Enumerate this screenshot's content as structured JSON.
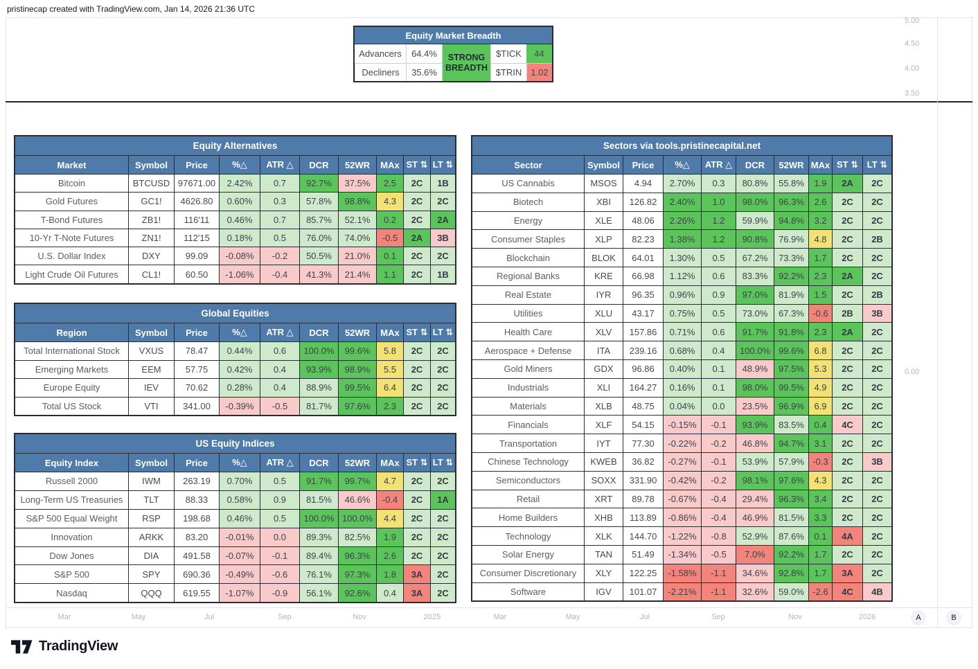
{
  "attribution": "pristinecap created with TradingView.com, Jan 14, 2026 21:36 UTC",
  "breadth": {
    "title": "Equity Market Breadth",
    "advancers_label": "Advancers",
    "advancers_value": "64.4%",
    "decliners_label": "Decliners",
    "decliners_value": "35.6%",
    "status": "STRONG\nBREADTH",
    "tick_label": "$TICK",
    "tick_value": "44",
    "trin_label": "$TRIN",
    "trin_value": "1.02"
  },
  "tables": [
    {
      "title": "Equity Alternatives",
      "columns": [
        "Market",
        "Symbol",
        "Price",
        "%△",
        "ATR △",
        "DCR",
        "52WR",
        "MAx",
        "ST ⇅",
        "LT ⇅"
      ],
      "rows": [
        {
          "name": "Bitcoin",
          "symbol": "BTCUSD",
          "price": "97671.00",
          "values": [
            "2.42%",
            "0.7",
            "92.7%",
            "37.5%",
            "2.5",
            "2C",
            "1B"
          ],
          "colors": [
            "l",
            "l",
            "g",
            "p",
            "g",
            "l",
            "l"
          ]
        },
        {
          "name": "Gold Futures",
          "symbol": "GC1!",
          "price": "4626.80",
          "values": [
            "0.60%",
            "0.3",
            "57.8%",
            "98.8%",
            "4.3",
            "2C",
            "2C"
          ],
          "colors": [
            "l",
            "l",
            "l",
            "g",
            "y",
            "l",
            "l"
          ]
        },
        {
          "name": "T-Bond Futures",
          "symbol": "ZB1!",
          "price": "116'11",
          "values": [
            "0.46%",
            "0.7",
            "85.7%",
            "52.1%",
            "0.2",
            "2C",
            "2A"
          ],
          "colors": [
            "l",
            "l",
            "l",
            "l",
            "g",
            "l",
            "g"
          ]
        },
        {
          "name": "10-Yr T-Note Futures",
          "symbol": "ZN1!",
          "price": "112'15",
          "values": [
            "0.18%",
            "0.5",
            "76.0%",
            "74.0%",
            "-0.5",
            "2A",
            "3B"
          ],
          "colors": [
            "l",
            "l",
            "l",
            "l",
            "r",
            "g",
            "p"
          ]
        },
        {
          "name": "U.S. Dollar Index",
          "symbol": "DXY",
          "price": "99.09",
          "values": [
            "-0.08%",
            "-0.2",
            "50.5%",
            "21.0%",
            "0.1",
            "2C",
            "2C"
          ],
          "colors": [
            "p",
            "p",
            "l",
            "p",
            "g",
            "l",
            "l"
          ]
        },
        {
          "name": "Light Crude Oil Futures",
          "symbol": "CL1!",
          "price": "60.50",
          "values": [
            "-1.06%",
            "-0.4",
            "41.3%",
            "21.4%",
            "1.1",
            "2C",
            "1B"
          ],
          "colors": [
            "p",
            "p",
            "p",
            "p",
            "g",
            "l",
            "l"
          ]
        }
      ]
    },
    {
      "title": "Global Equities",
      "columns": [
        "Region",
        "Symbol",
        "Price",
        "%△",
        "ATR △",
        "DCR",
        "52WR",
        "MAx",
        "ST ⇅",
        "LT ⇅"
      ],
      "rows": [
        {
          "name": "Total International Stock",
          "symbol": "VXUS",
          "price": "78.47",
          "values": [
            "0.44%",
            "0.6",
            "100.0%",
            "99.6%",
            "5.8",
            "2C",
            "2C"
          ],
          "colors": [
            "l",
            "l",
            "g",
            "g",
            "y",
            "l",
            "l"
          ]
        },
        {
          "name": "Emerging Markets",
          "symbol": "EEM",
          "price": "57.75",
          "values": [
            "0.42%",
            "0.4",
            "93.9%",
            "98.9%",
            "5.5",
            "2C",
            "2C"
          ],
          "colors": [
            "l",
            "l",
            "g",
            "g",
            "y",
            "l",
            "l"
          ]
        },
        {
          "name": "Europe Equity",
          "symbol": "IEV",
          "price": "70.62",
          "values": [
            "0.28%",
            "0.4",
            "88.9%",
            "99.5%",
            "6.4",
            "2C",
            "2C"
          ],
          "colors": [
            "l",
            "l",
            "l",
            "g",
            "y",
            "l",
            "l"
          ]
        },
        {
          "name": "Total US Stock",
          "symbol": "VTI",
          "price": "341.00",
          "values": [
            "-0.39%",
            "-0.5",
            "81.7%",
            "97.6%",
            "2.3",
            "2C",
            "2C"
          ],
          "colors": [
            "p",
            "p",
            "l",
            "g",
            "g",
            "l",
            "l"
          ]
        }
      ]
    },
    {
      "title": "US Equity Indices",
      "columns": [
        "Equity Index",
        "Symbol",
        "Price",
        "%△",
        "ATR △",
        "DCR",
        "52WR",
        "MAx",
        "ST ⇅",
        "LT ⇅"
      ],
      "rows": [
        {
          "name": "Russell 2000",
          "symbol": "IWM",
          "price": "263.19",
          "values": [
            "0.70%",
            "0.5",
            "91.7%",
            "99.7%",
            "4.7",
            "2C",
            "2C"
          ],
          "colors": [
            "l",
            "l",
            "g",
            "g",
            "y",
            "l",
            "l"
          ]
        },
        {
          "name": "Long-Term US Treasuries",
          "symbol": "TLT",
          "price": "88.33",
          "values": [
            "0.58%",
            "0.9",
            "81.5%",
            "46.6%",
            "-0.4",
            "2C",
            "1A"
          ],
          "colors": [
            "l",
            "l",
            "l",
            "p",
            "r",
            "l",
            "g"
          ]
        },
        {
          "name": "S&P 500 Equal Weight",
          "symbol": "RSP",
          "price": "198.68",
          "values": [
            "0.46%",
            "0.5",
            "100.0%",
            "100.0%",
            "4.4",
            "2C",
            "2C"
          ],
          "colors": [
            "l",
            "l",
            "g",
            "g",
            "y",
            "l",
            "l"
          ]
        },
        {
          "name": "Innovation",
          "symbol": "ARKK",
          "price": "83.20",
          "values": [
            "-0.01%",
            "0.0",
            "89.3%",
            "82.5%",
            "1.9",
            "2C",
            "2C"
          ],
          "colors": [
            "p",
            "p",
            "l",
            "l",
            "g",
            "l",
            "l"
          ]
        },
        {
          "name": "Dow Jones",
          "symbol": "DIA",
          "price": "491.58",
          "values": [
            "-0.07%",
            "-0.1",
            "89.4%",
            "96.3%",
            "2.6",
            "2C",
            "2C"
          ],
          "colors": [
            "p",
            "p",
            "l",
            "g",
            "g",
            "l",
            "l"
          ]
        },
        {
          "name": "S&P 500",
          "symbol": "SPY",
          "price": "690.36",
          "values": [
            "-0.49%",
            "-0.6",
            "76.1%",
            "97.3%",
            "1.8",
            "3A",
            "2C"
          ],
          "colors": [
            "p",
            "p",
            "l",
            "g",
            "g",
            "r",
            "l"
          ]
        },
        {
          "name": "Nasdaq",
          "symbol": "QQQ",
          "price": "619.55",
          "values": [
            "-1.07%",
            "-0.9",
            "56.1%",
            "92.6%",
            "0.4",
            "3A",
            "2C"
          ],
          "colors": [
            "p",
            "p",
            "l",
            "g",
            "l",
            "r",
            "l"
          ]
        }
      ]
    },
    {
      "title": "Sectors via tools.pristinecapital.net",
      "columns": [
        "Sector",
        "Symbol",
        "Price",
        "%△",
        "ATR △",
        "DCR",
        "52WR",
        "MAx",
        "ST ⇅",
        "LT ⇅"
      ],
      "rows": [
        {
          "name": "US Cannabis",
          "symbol": "MSOS",
          "price": "4.94",
          "values": [
            "2.70%",
            "0.3",
            "80.8%",
            "55.8%",
            "1.9",
            "2A",
            "2C"
          ],
          "colors": [
            "l",
            "l",
            "l",
            "l",
            "g",
            "g",
            "l"
          ]
        },
        {
          "name": "Biotech",
          "symbol": "XBI",
          "price": "126.82",
          "values": [
            "2.40%",
            "1.0",
            "98.0%",
            "96.3%",
            "2.6",
            "2C",
            "2C"
          ],
          "colors": [
            "g",
            "g",
            "g",
            "g",
            "g",
            "l",
            "l"
          ]
        },
        {
          "name": "Energy",
          "symbol": "XLE",
          "price": "48.06",
          "values": [
            "2.26%",
            "1.2",
            "59.9%",
            "94.8%",
            "3.2",
            "2C",
            "2C"
          ],
          "colors": [
            "g",
            "g",
            "l",
            "g",
            "g",
            "l",
            "l"
          ]
        },
        {
          "name": "Consumer Staples",
          "symbol": "XLP",
          "price": "82.23",
          "values": [
            "1.38%",
            "1.2",
            "90.8%",
            "76.9%",
            "4.8",
            "2C",
            "2B"
          ],
          "colors": [
            "g",
            "g",
            "g",
            "l",
            "y",
            "l",
            "l"
          ]
        },
        {
          "name": "Blockchain",
          "symbol": "BLOK",
          "price": "64.01",
          "values": [
            "1.30%",
            "0.5",
            "67.2%",
            "73.3%",
            "1.7",
            "2C",
            "2C"
          ],
          "colors": [
            "l",
            "l",
            "l",
            "l",
            "g",
            "l",
            "l"
          ]
        },
        {
          "name": "Regional Banks",
          "symbol": "KRE",
          "price": "66.98",
          "values": [
            "1.12%",
            "0.6",
            "83.3%",
            "92.2%",
            "2.3",
            "2A",
            "2C"
          ],
          "colors": [
            "l",
            "l",
            "l",
            "g",
            "g",
            "g",
            "l"
          ]
        },
        {
          "name": "Real Estate",
          "symbol": "IYR",
          "price": "96.35",
          "values": [
            "0.96%",
            "0.9",
            "97.0%",
            "81.9%",
            "1.5",
            "2C",
            "2B"
          ],
          "colors": [
            "l",
            "l",
            "g",
            "l",
            "g",
            "l",
            "l"
          ]
        },
        {
          "name": "Utilities",
          "symbol": "XLU",
          "price": "43.17",
          "values": [
            "0.75%",
            "0.5",
            "73.0%",
            "67.3%",
            "-0.6",
            "2B",
            "3B"
          ],
          "colors": [
            "l",
            "l",
            "l",
            "l",
            "r",
            "l",
            "p"
          ]
        },
        {
          "name": "Health Care",
          "symbol": "XLV",
          "price": "157.86",
          "values": [
            "0.71%",
            "0.6",
            "91.7%",
            "91.8%",
            "2.3",
            "2A",
            "2C"
          ],
          "colors": [
            "l",
            "l",
            "g",
            "g",
            "g",
            "g",
            "l"
          ]
        },
        {
          "name": "Aerospace + Defense",
          "symbol": "ITA",
          "price": "239.16",
          "values": [
            "0.68%",
            "0.4",
            "100.0%",
            "99.6%",
            "6.8",
            "2C",
            "2C"
          ],
          "colors": [
            "l",
            "l",
            "g",
            "g",
            "y",
            "l",
            "l"
          ]
        },
        {
          "name": "Gold Miners",
          "symbol": "GDX",
          "price": "96.86",
          "values": [
            "0.40%",
            "0.1",
            "48.9%",
            "97.5%",
            "5.3",
            "2C",
            "2C"
          ],
          "colors": [
            "l",
            "l",
            "p",
            "g",
            "y",
            "l",
            "l"
          ]
        },
        {
          "name": "Industrials",
          "symbol": "XLI",
          "price": "164.27",
          "values": [
            "0.16%",
            "0.1",
            "98.0%",
            "99.5%",
            "4.9",
            "2C",
            "2C"
          ],
          "colors": [
            "l",
            "l",
            "g",
            "g",
            "y",
            "l",
            "l"
          ]
        },
        {
          "name": "Materials",
          "symbol": "XLB",
          "price": "48.75",
          "values": [
            "0.04%",
            "0.0",
            "23.5%",
            "96.9%",
            "6.9",
            "2C",
            "2C"
          ],
          "colors": [
            "l",
            "l",
            "p",
            "g",
            "y",
            "l",
            "l"
          ]
        },
        {
          "name": "Financials",
          "symbol": "XLF",
          "price": "54.15",
          "values": [
            "-0.15%",
            "-0.1",
            "93.9%",
            "83.5%",
            "0.4",
            "4C",
            "2C"
          ],
          "colors": [
            "p",
            "p",
            "g",
            "l",
            "g",
            "p",
            "l"
          ]
        },
        {
          "name": "Transportation",
          "symbol": "IYT",
          "price": "77.30",
          "values": [
            "-0.22%",
            "-0.2",
            "46.8%",
            "94.7%",
            "3.1",
            "2C",
            "2C"
          ],
          "colors": [
            "p",
            "p",
            "p",
            "g",
            "g",
            "l",
            "l"
          ]
        },
        {
          "name": "Chinese Technology",
          "symbol": "KWEB",
          "price": "36.82",
          "values": [
            "-0.27%",
            "-0.1",
            "53.9%",
            "57.9%",
            "-0.3",
            "2C",
            "3B"
          ],
          "colors": [
            "p",
            "p",
            "l",
            "l",
            "r",
            "l",
            "p"
          ]
        },
        {
          "name": "Semiconductors",
          "symbol": "SOXX",
          "price": "331.90",
          "values": [
            "-0.42%",
            "-0.2",
            "98.1%",
            "97.6%",
            "4.3",
            "2C",
            "2C"
          ],
          "colors": [
            "p",
            "p",
            "g",
            "g",
            "y",
            "l",
            "l"
          ]
        },
        {
          "name": "Retail",
          "symbol": "XRT",
          "price": "89.78",
          "values": [
            "-0.67%",
            "-0.4",
            "29.4%",
            "96.3%",
            "3.4",
            "2C",
            "2C"
          ],
          "colors": [
            "p",
            "p",
            "p",
            "g",
            "g",
            "l",
            "l"
          ]
        },
        {
          "name": "Home Builders",
          "symbol": "XHB",
          "price": "113.89",
          "values": [
            "-0.86%",
            "-0.4",
            "46.9%",
            "81.5%",
            "3.3",
            "2C",
            "2C"
          ],
          "colors": [
            "p",
            "p",
            "p",
            "l",
            "g",
            "l",
            "l"
          ]
        },
        {
          "name": "Technology",
          "symbol": "XLK",
          "price": "144.70",
          "values": [
            "-1.22%",
            "-0.8",
            "52.9%",
            "87.6%",
            "0.1",
            "4A",
            "2C"
          ],
          "colors": [
            "p",
            "p",
            "l",
            "l",
            "g",
            "r",
            "l"
          ]
        },
        {
          "name": "Solar Energy",
          "symbol": "TAN",
          "price": "51.49",
          "values": [
            "-1.34%",
            "-0.5",
            "7.0%",
            "92.2%",
            "1.7",
            "2C",
            "2C"
          ],
          "colors": [
            "p",
            "p",
            "r",
            "g",
            "g",
            "l",
            "l"
          ]
        },
        {
          "name": "Consumer Discretionary",
          "symbol": "XLY",
          "price": "122.25",
          "values": [
            "-1.58%",
            "-1.1",
            "34.6%",
            "92.8%",
            "1.7",
            "3A",
            "2C"
          ],
          "colors": [
            "r",
            "r",
            "p",
            "g",
            "g",
            "r",
            "l"
          ]
        },
        {
          "name": "Software",
          "symbol": "IGV",
          "price": "101.07",
          "values": [
            "-2.21%",
            "-1.1",
            "32.6%",
            "59.0%",
            "-2.6",
            "4C",
            "4B"
          ],
          "colors": [
            "r",
            "r",
            "p",
            "l",
            "r",
            "r",
            "p"
          ]
        }
      ]
    }
  ],
  "axis": {
    "left_months": [
      "Mar",
      "May",
      "Jul",
      "Sep",
      "Nov",
      "2025"
    ],
    "right_months": [
      "Mar",
      "May",
      "Jul",
      "Sep",
      "Nov",
      "2026"
    ],
    "price_labels": [
      "5.00",
      "4.50",
      "4.00",
      "3.50"
    ],
    "zero_label": "0.00",
    "button_a": "A",
    "button_b": "B"
  },
  "logo_text": "TradingView",
  "colors": {
    "header_blue": "#4e7ba9",
    "strong_green": "#5bc55b",
    "light_green": "#cfe9cb",
    "yellow": "#f2e173",
    "pink": "#f8cbca",
    "red_salmon": "#f2847c"
  }
}
